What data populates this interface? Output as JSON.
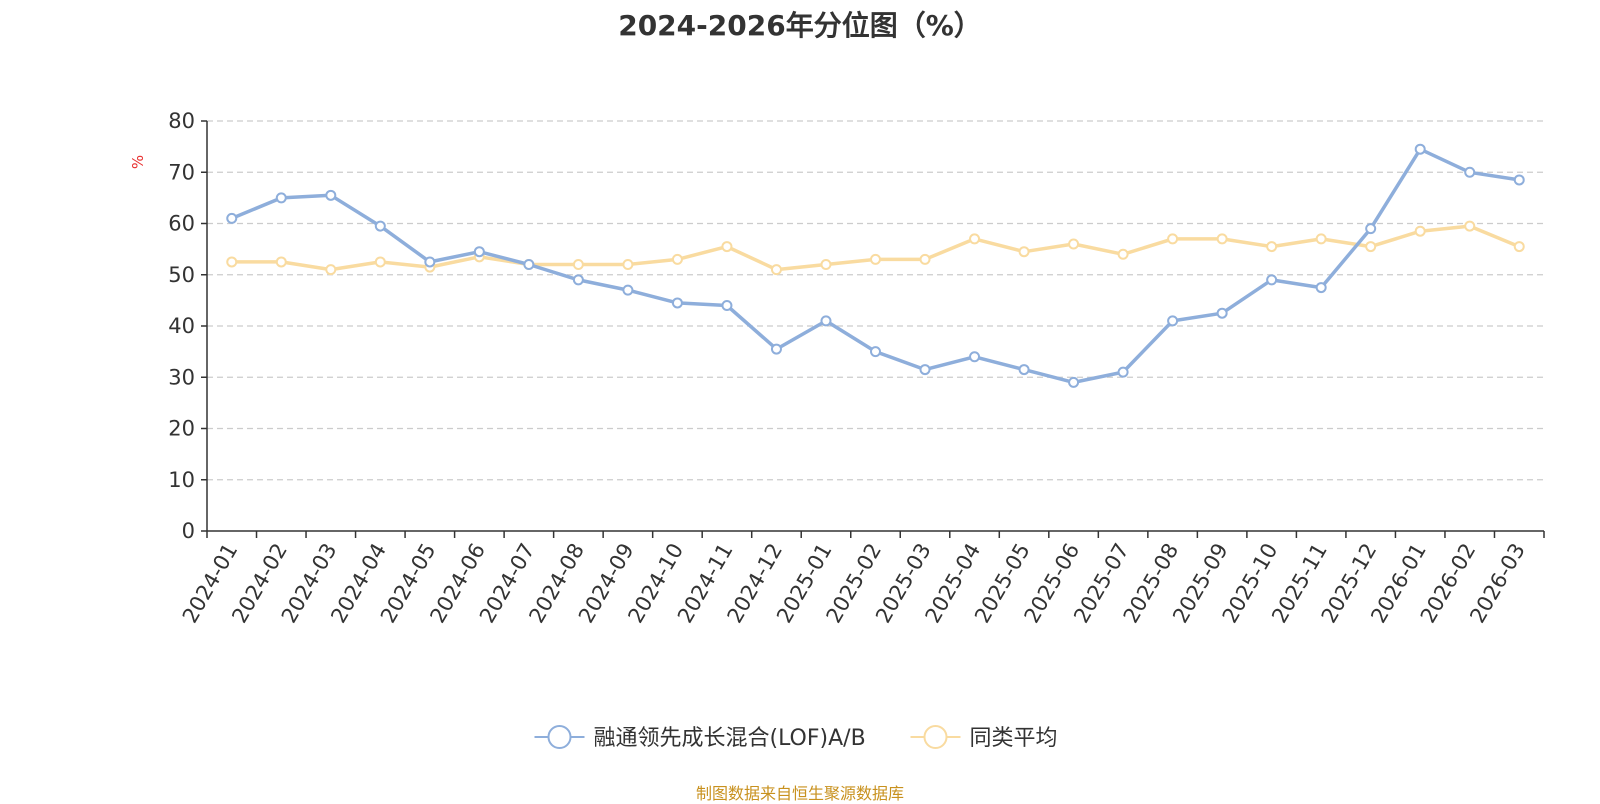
{
  "chart_data": {
    "type": "line",
    "title": "2024-2026年分位图（%）",
    "ylabel": "%",
    "ylim": [
      0,
      80
    ],
    "yticks": [
      0,
      10,
      20,
      30,
      40,
      50,
      60,
      70,
      80
    ],
    "grid": true,
    "legend_position": "bottom-center",
    "categories": [
      "2024-01",
      "2024-02",
      "2024-03",
      "2024-04",
      "2024-05",
      "2024-06",
      "2024-07",
      "2024-08",
      "2024-09",
      "2024-10",
      "2024-11",
      "2024-12",
      "2025-01",
      "2025-02",
      "2025-03",
      "2025-04",
      "2025-05",
      "2025-06",
      "2025-07",
      "2025-08",
      "2025-09",
      "2025-10",
      "2025-11",
      "2025-12",
      "2026-01",
      "2026-02",
      "2026-03"
    ],
    "series": [
      {
        "name": "融通领先成长混合(LOF)A/B",
        "color": "#8eaedb",
        "values": [
          61,
          65,
          65.5,
          59.5,
          52.5,
          54.5,
          52,
          49,
          47,
          44.5,
          44,
          35.5,
          41,
          35,
          31.5,
          34,
          31.5,
          29,
          31,
          41,
          42.5,
          49,
          47.5,
          59,
          74.5,
          70,
          68.5
        ]
      },
      {
        "name": "同类平均",
        "color": "#f9dba0",
        "values": [
          52.5,
          52.5,
          51,
          52.5,
          51.5,
          53.5,
          52,
          52,
          52,
          53,
          55.5,
          51,
          52,
          53,
          53,
          57,
          54.5,
          56,
          54,
          57,
          57,
          55.5,
          57,
          55.5,
          58.5,
          59.5,
          55.5
        ]
      }
    ]
  },
  "source_note": "制图数据来自恒生聚源数据库",
  "colors": {
    "ylabel": "#e83030",
    "axis": "#333333",
    "grid": "#cccccc",
    "source": "#c8911e"
  }
}
